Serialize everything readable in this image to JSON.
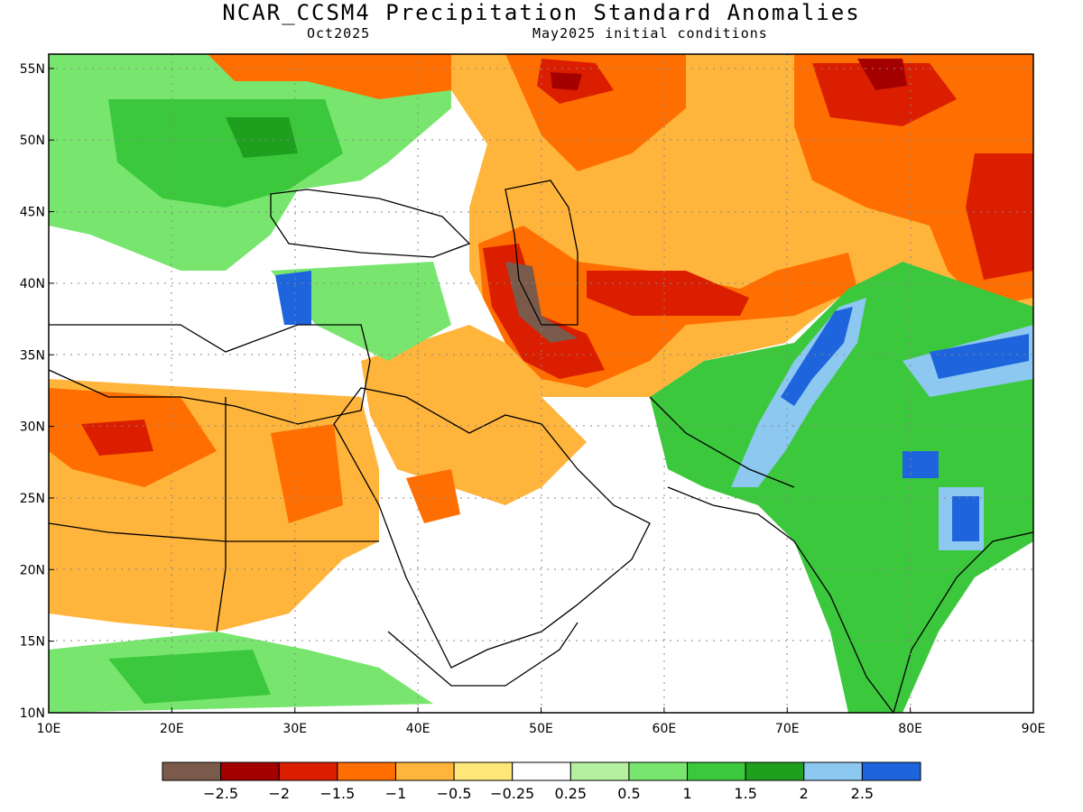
{
  "title": "NCAR_CCSM4 Precipitation Standard Anomalies",
  "valid_month": "Oct2025",
  "init_conditions": "May2025 initial conditions",
  "map": {
    "lon_ticks": [
      "10E",
      "20E",
      "30E",
      "40E",
      "50E",
      "60E",
      "70E",
      "80E",
      "90E"
    ],
    "lat_ticks": [
      "55N",
      "50N",
      "45N",
      "40N",
      "35N",
      "30N",
      "25N",
      "20N",
      "15N",
      "10N"
    ],
    "lon_range": [
      10,
      90
    ],
    "lat_range": [
      10,
      56
    ],
    "grid": "dotted"
  },
  "colorbar": {
    "colors": [
      "#7a5a4a",
      "#a50000",
      "#dc1e00",
      "#ff6e00",
      "#ffb43c",
      "#ffe678",
      "#ffffff",
      "#b4f0a0",
      "#78e66e",
      "#3cc83c",
      "#1ea01e",
      "#8cc8f0",
      "#1e64dc"
    ],
    "labels": [
      "−2.5",
      "−2",
      "−1.5",
      "−1",
      "−0.5",
      "−0.25",
      "0.25",
      "0.5",
      "1",
      "1.5",
      "2",
      "2.5"
    ]
  }
}
